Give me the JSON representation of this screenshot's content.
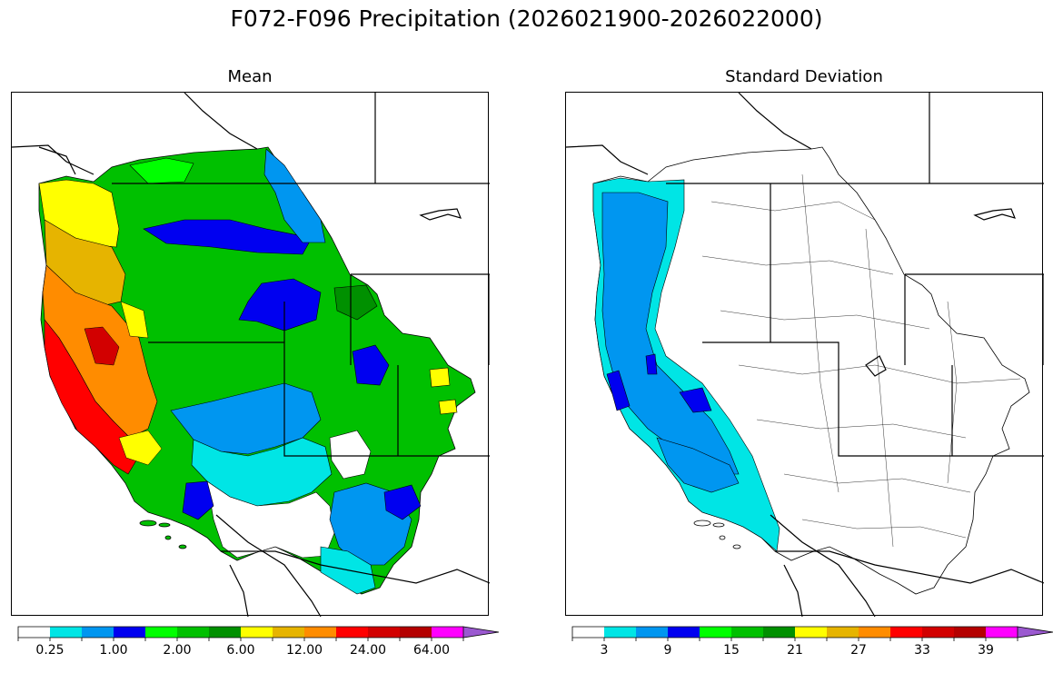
{
  "figure": {
    "title": "F072-F096 Precipitation (2026021900-2026022000)"
  },
  "panels": [
    {
      "id": "mean",
      "title": "Mean",
      "colorbar": {
        "colors": [
          "#ffffff",
          "#00e5e5",
          "#0096f0",
          "#0000f0",
          "#00ff00",
          "#00c000",
          "#009000",
          "#ffff00",
          "#e6b400",
          "#ff8c00",
          "#ff0000",
          "#d20000",
          "#b40000",
          "#ff00ff",
          "#9b59d0"
        ],
        "tick_labels": [
          "0.25",
          "1.00",
          "2.00",
          "6.00",
          "12.00",
          "24.00",
          "64.00"
        ],
        "tick_label_bin_index": [
          1,
          3,
          5,
          7,
          9,
          11,
          13
        ],
        "extend": "max"
      }
    },
    {
      "id": "stddev",
      "title": "Standard Deviation",
      "colorbar": {
        "colors": [
          "#ffffff",
          "#00e5e5",
          "#0096f0",
          "#0000f0",
          "#00ff00",
          "#00c000",
          "#009000",
          "#ffff00",
          "#e6b400",
          "#ff8c00",
          "#ff0000",
          "#d20000",
          "#b40000",
          "#ff00ff",
          "#9b59d0"
        ],
        "tick_labels": [
          "3",
          "9",
          "15",
          "21",
          "27",
          "33",
          "39"
        ],
        "tick_label_bin_index": [
          1,
          3,
          5,
          7,
          9,
          11,
          13
        ],
        "extend": "max"
      }
    }
  ]
}
